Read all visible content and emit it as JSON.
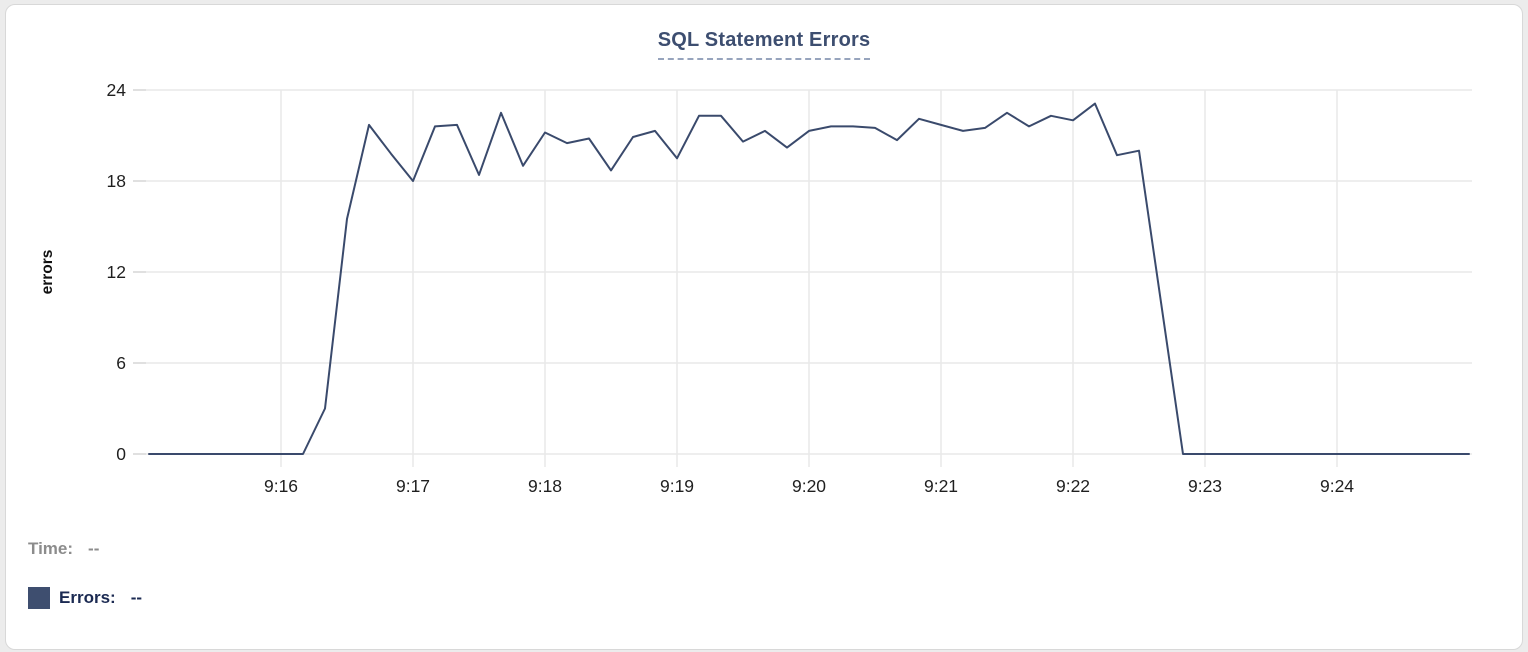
{
  "header": {
    "title": "SQL Statement Errors"
  },
  "readout": {
    "time_label": "Time:",
    "time_value": "--",
    "errors_label": "Errors:",
    "errors_value": "--",
    "swatch_color": "#3E4E6F"
  },
  "colors": {
    "line": "#3A4A6C",
    "title": "#3D4E70",
    "grid": "#E9E9E9",
    "tick_text": "#1F1F1F",
    "axis_title_text": "#111111",
    "legend_gray": "#8C8C8C",
    "legend_navy": "#1B2A52"
  },
  "chart_data": {
    "type": "line",
    "title": "SQL Statement Errors",
    "ylabel": "errors",
    "xlabel": "",
    "ylim": [
      0,
      24
    ],
    "y_ticks": [
      0,
      6,
      12,
      18,
      24
    ],
    "x_ticks": [
      "9:16",
      "9:17",
      "9:18",
      "9:19",
      "9:20",
      "9:21",
      "9:22",
      "9:23",
      "9:24"
    ],
    "grid": true,
    "legend_position": "below",
    "x": [
      "9:15:00",
      "9:15:10",
      "9:15:20",
      "9:15:30",
      "9:15:40",
      "9:15:50",
      "9:16:00",
      "9:16:10",
      "9:16:20",
      "9:16:30",
      "9:16:40",
      "9:16:50",
      "9:17:00",
      "9:17:10",
      "9:17:20",
      "9:17:30",
      "9:17:40",
      "9:17:50",
      "9:18:00",
      "9:18:10",
      "9:18:20",
      "9:18:30",
      "9:18:40",
      "9:18:50",
      "9:19:00",
      "9:19:10",
      "9:19:20",
      "9:19:30",
      "9:19:40",
      "9:19:50",
      "9:20:00",
      "9:20:10",
      "9:20:20",
      "9:20:30",
      "9:20:40",
      "9:20:50",
      "9:21:00",
      "9:21:10",
      "9:21:20",
      "9:21:30",
      "9:21:40",
      "9:21:50",
      "9:22:00",
      "9:22:10",
      "9:22:20",
      "9:22:30",
      "9:22:40",
      "9:22:50",
      "9:23:00",
      "9:23:10",
      "9:23:20",
      "9:23:30",
      "9:23:40",
      "9:23:50",
      "9:24:00",
      "9:24:10",
      "9:24:20",
      "9:24:30",
      "9:24:40",
      "9:24:50",
      "9:25:00"
    ],
    "series": [
      {
        "name": "Errors",
        "color": "#3A4A6C",
        "values": [
          0,
          0,
          0,
          0,
          0,
          0,
          0,
          0,
          3,
          15.5,
          21.7,
          19.8,
          18,
          21.6,
          21.7,
          18.4,
          22.5,
          19,
          21.2,
          20.5,
          20.8,
          18.7,
          20.9,
          21.3,
          19.5,
          22.3,
          22.3,
          20.6,
          21.3,
          20.2,
          21.3,
          21.6,
          21.6,
          21.5,
          20.7,
          22.1,
          21.7,
          21.3,
          21.5,
          22.5,
          21.6,
          22.3,
          22.0,
          23.1,
          19.7,
          20.0,
          10,
          0,
          0,
          0,
          0,
          0,
          0,
          0,
          0,
          0,
          0,
          0,
          0,
          0,
          0
        ]
      }
    ]
  }
}
